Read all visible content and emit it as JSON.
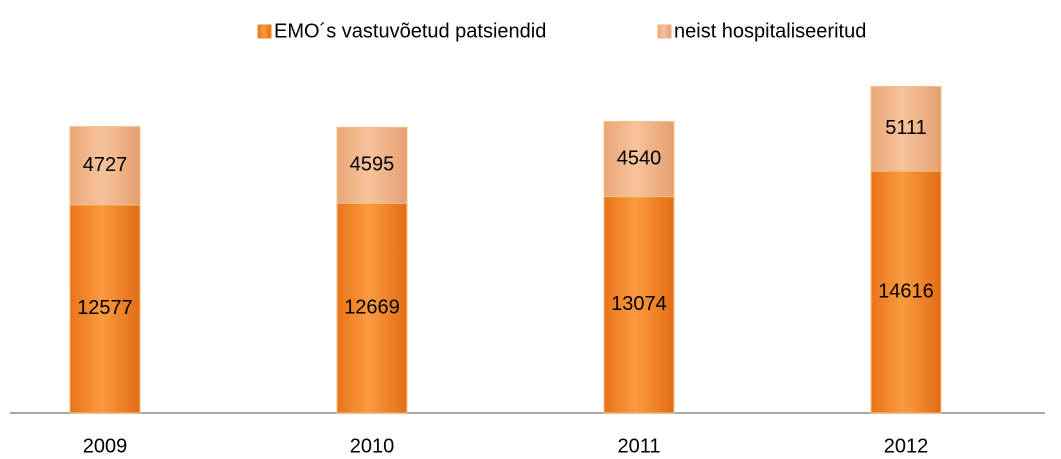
{
  "chart_data": {
    "type": "stacked-bar",
    "categories": [
      "2009",
      "2010",
      "2011",
      "2012"
    ],
    "series": [
      {
        "name": "EMO´s vastuvõetud patsiendid",
        "color": "#f4851f",
        "values": [
          12577,
          12669,
          13074,
          14616
        ]
      },
      {
        "name": "neist hospitaliseeritud",
        "color": "#f2b27f",
        "values": [
          4727,
          4595,
          4540,
          5111
        ]
      }
    ],
    "ylim": [
      0,
      20000
    ],
    "legend": "top"
  }
}
